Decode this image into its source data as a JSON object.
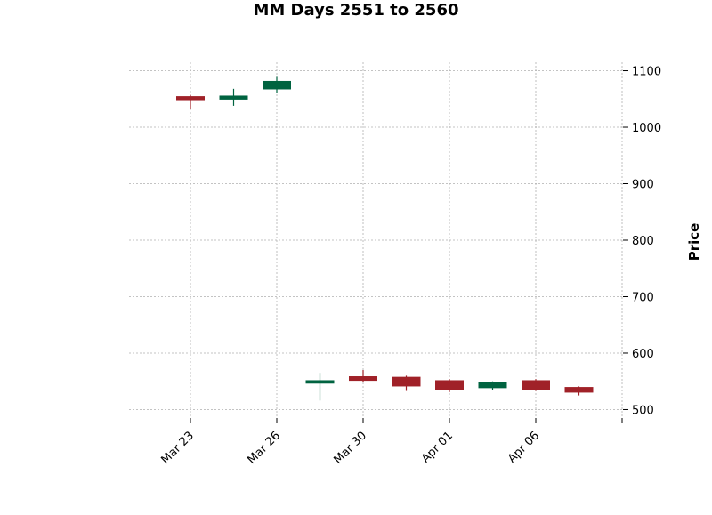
{
  "chart_data": {
    "type": "candlestick",
    "title": "MM Days 2551 to 2560",
    "ylabel": "Price",
    "xlabel": "",
    "ylim": [
      485,
      1115
    ],
    "y_ticks": [
      500,
      600,
      700,
      800,
      900,
      1000,
      1100
    ],
    "y_axis_side": "right",
    "grid": true,
    "x_tick_labels": [
      {
        "slot": 1,
        "label": "Mar 23"
      },
      {
        "slot": 3,
        "label": "Mar 26"
      },
      {
        "slot": 5,
        "label": "Mar 30"
      },
      {
        "slot": 7,
        "label": "Apr 01"
      },
      {
        "slot": 9,
        "label": "Apr 06"
      },
      {
        "slot": 11,
        "label": ""
      }
    ],
    "candles": [
      {
        "slot": 1,
        "open": 1055,
        "high": 1057,
        "low": 1032,
        "close": 1048
      },
      {
        "slot": 2,
        "open": 1049,
        "high": 1068,
        "low": 1038,
        "close": 1056
      },
      {
        "slot": 3,
        "open": 1067,
        "high": 1089,
        "low": 1060,
        "close": 1082
      },
      {
        "slot": 4,
        "open": 546,
        "high": 565,
        "low": 516,
        "close": 552
      },
      {
        "slot": 5,
        "open": 559,
        "high": 570,
        "low": 548,
        "close": 551
      },
      {
        "slot": 6,
        "open": 558,
        "high": 560,
        "low": 533,
        "close": 541
      },
      {
        "slot": 7,
        "open": 552,
        "high": 554,
        "low": 531,
        "close": 534
      },
      {
        "slot": 8,
        "open": 538,
        "high": 550,
        "low": 535,
        "close": 548
      },
      {
        "slot": 9,
        "open": 552,
        "high": 554,
        "low": 533,
        "close": 534
      },
      {
        "slot": 10,
        "open": 540,
        "high": 541,
        "low": 525,
        "close": 530
      }
    ],
    "colors": {
      "up": "#006340",
      "down": "#a02128",
      "grid": "#b0b0b0",
      "text": "#000000"
    }
  }
}
